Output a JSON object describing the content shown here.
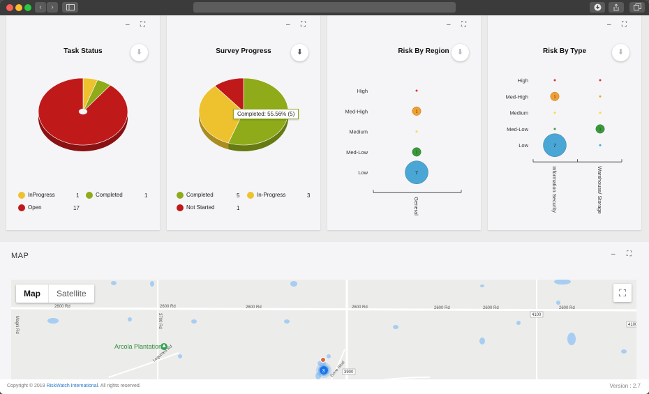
{
  "window": {
    "controls": {
      "back": "‹",
      "forward": "›"
    }
  },
  "cards": [
    {
      "title": "Task Status",
      "minimize": "–",
      "expand": "⛶",
      "legend": [
        {
          "label": "InProgress",
          "count": "1",
          "color": "#eec22e"
        },
        {
          "label": "Completed",
          "count": "1",
          "color": "#8fab1a"
        },
        {
          "label": "Open",
          "count": "17",
          "color": "#c0191a"
        }
      ]
    },
    {
      "title": "Survey Progress",
      "minimize": "–",
      "expand": "⛶",
      "tooltip": "Completed: 55.56% (5)",
      "legend": [
        {
          "label": "Completed",
          "count": "5",
          "color": "#8fab1a"
        },
        {
          "label": "In-Progress",
          "count": "3",
          "color": "#eec22e"
        },
        {
          "label": "Not Started",
          "count": "1",
          "color": "#c0191a"
        }
      ]
    },
    {
      "title": "Risk By Region",
      "minimize": "–",
      "expand": "⛶"
    },
    {
      "title": "Risk By Type",
      "minimize": "–",
      "expand": "⛶"
    }
  ],
  "chart_data": [
    {
      "type": "pie",
      "title": "Task Status",
      "categories": [
        "InProgress",
        "Completed",
        "Open"
      ],
      "values": [
        1,
        1,
        17
      ],
      "colors": [
        "#eec22e",
        "#8fab1a",
        "#c0191a"
      ]
    },
    {
      "type": "pie",
      "title": "Survey Progress",
      "categories": [
        "Completed",
        "In-Progress",
        "Not Started"
      ],
      "values": [
        5,
        3,
        1
      ],
      "colors": [
        "#8fab1a",
        "#eec22e",
        "#c0191a"
      ]
    },
    {
      "type": "scatter",
      "title": "Risk By Region",
      "y_categories": [
        "High",
        "Med-High",
        "Medium",
        "Med-Low",
        "Low"
      ],
      "x_categories": [
        "General"
      ],
      "points": [
        {
          "x": "General",
          "y": "High",
          "value": 0,
          "color": "#e53030"
        },
        {
          "x": "General",
          "y": "Med-High",
          "value": 1,
          "color": "#f0a030"
        },
        {
          "x": "General",
          "y": "Medium",
          "value": 0,
          "color": "#f0e040"
        },
        {
          "x": "General",
          "y": "Med-Low",
          "value": 1,
          "color": "#3a9a3a"
        },
        {
          "x": "General",
          "y": "Low",
          "value": 7,
          "color": "#4aa6d4"
        }
      ]
    },
    {
      "type": "scatter",
      "title": "Risk By Type",
      "y_categories": [
        "High",
        "Med-High",
        "Medium",
        "Med-Low",
        "Low"
      ],
      "x_categories": [
        "Information Security",
        "Warehouse/ Storage"
      ],
      "points": [
        {
          "x": "Information Security",
          "y": "High",
          "value": 0,
          "color": "#e53030"
        },
        {
          "x": "Information Security",
          "y": "Med-High",
          "value": 1,
          "color": "#f0a030"
        },
        {
          "x": "Information Security",
          "y": "Medium",
          "value": 0,
          "color": "#f0e040"
        },
        {
          "x": "Information Security",
          "y": "Med-Low",
          "value": 0,
          "color": "#3a9a3a"
        },
        {
          "x": "Information Security",
          "y": "Low",
          "value": 7,
          "color": "#4aa6d4"
        },
        {
          "x": "Warehouse/ Storage",
          "y": "High",
          "value": 0,
          "color": "#e53030"
        },
        {
          "x": "Warehouse/ Storage",
          "y": "Med-High",
          "value": 0,
          "color": "#f0a030"
        },
        {
          "x": "Warehouse/ Storage",
          "y": "Medium",
          "value": 0,
          "color": "#f0e040"
        },
        {
          "x": "Warehouse/ Storage",
          "y": "Med-Low",
          "value": 1,
          "color": "#3a9a3a"
        },
        {
          "x": "Warehouse/ Storage",
          "y": "Low",
          "value": 0,
          "color": "#4aa6d4"
        }
      ]
    }
  ],
  "map": {
    "section_title": "MAP",
    "minimize": "–",
    "expand": "⛶",
    "type_map": "Map",
    "type_satellite": "Satellite",
    "fullscreen_icon": "⛶",
    "roads": [
      "2600 Rd",
      "2600 Rd",
      "2600 Rd",
      "2600 Rd",
      "2600 Rd",
      "2600 Rd",
      "2600 Rd",
      "3700 Rd",
      "Magni Rd",
      "Legumes Rd",
      "Dove Stud"
    ],
    "shields": [
      "4100",
      "4100",
      "3900"
    ],
    "place": "Arcola Plantation",
    "marker_count": "3"
  },
  "footer": {
    "copyright_prefix": "Copyright © 2019 ",
    "company": "RiskWatch International",
    "copyright_suffix": ". All rights reserved.",
    "version": "Version : 2.7"
  }
}
